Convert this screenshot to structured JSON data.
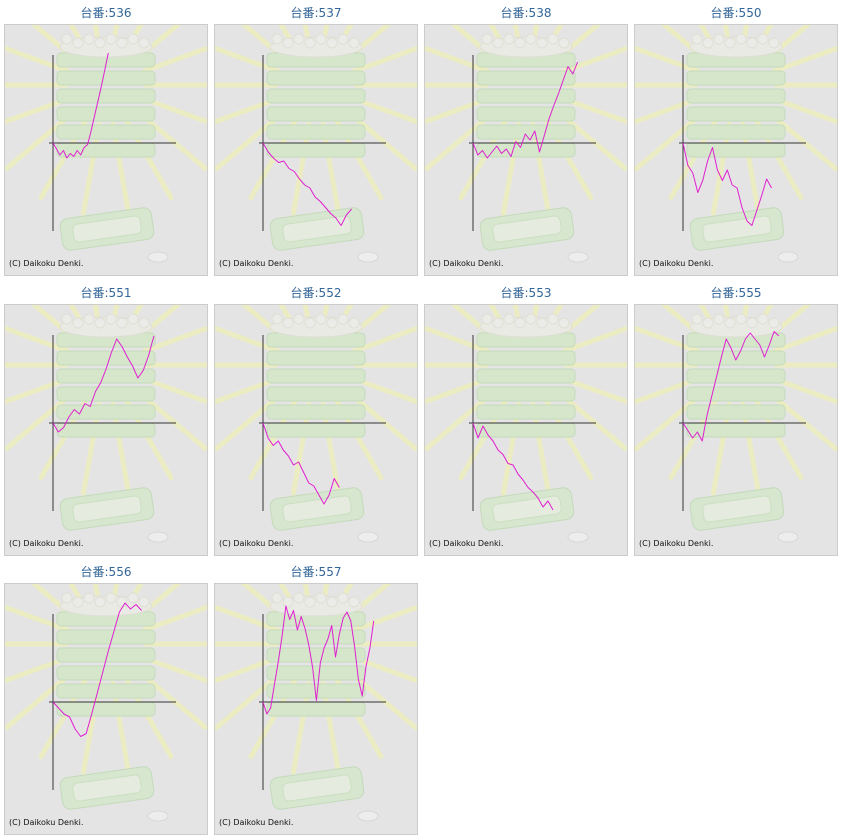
{
  "page": {
    "label_prefix": "台番:",
    "copyright": "(C) Daikoku Denki."
  },
  "colors": {
    "line": "#e01fd0",
    "axis": "#333333",
    "panel_bg": "#e4e4e4",
    "title": "#336699"
  },
  "chart_data": [
    {
      "type": "line",
      "title": "台番:536",
      "ylim": [
        -6,
        6
      ],
      "values": [
        0,
        -0.4,
        -0.8,
        -0.5,
        -1,
        -0.7,
        -0.9,
        -0.5,
        -0.8,
        -0.3,
        -0.1,
        0.8,
        1.8,
        2.8,
        3.8,
        4.9,
        6
      ]
    },
    {
      "type": "line",
      "title": "台番:537",
      "ylim": [
        -6,
        6
      ],
      "values": [
        0,
        -0.6,
        -1,
        -1.3,
        -1.2,
        -1.7,
        -1.9,
        -2.4,
        -2.8,
        -3,
        -3.6,
        -3.9,
        -4.3,
        -4.7,
        -5,
        -5.5,
        -4.8,
        -4.4
      ]
    },
    {
      "type": "line",
      "title": "台番:538",
      "ylim": [
        -6,
        6
      ],
      "values": [
        0,
        -0.8,
        -0.5,
        -1,
        -0.6,
        -0.2,
        -0.7,
        -0.4,
        -0.9,
        0.1,
        -0.3,
        0.6,
        0.2,
        0.8,
        -0.6,
        0.5,
        1.6,
        2.5,
        3.3,
        4.2,
        5.1,
        4.6,
        5.4
      ]
    },
    {
      "type": "line",
      "title": "台番:550",
      "ylim": [
        -6,
        6
      ],
      "values": [
        0,
        -1.5,
        -2,
        -3.3,
        -2.5,
        -1.2,
        -0.3,
        -1.8,
        -2.5,
        -1.8,
        -2.8,
        -3,
        -4.3,
        -5.2,
        -5.5,
        -4.5,
        -3.5,
        -2.4,
        -3
      ]
    },
    {
      "type": "line",
      "title": "台番:551",
      "ylim": [
        -6,
        6
      ],
      "values": [
        0,
        -0.6,
        -0.3,
        0.4,
        0.9,
        0.6,
        1.3,
        1.1,
        2.1,
        2.7,
        3.6,
        4.7,
        5.6,
        5.1,
        4.4,
        3.8,
        3,
        3.5,
        4.5,
        5.8
      ]
    },
    {
      "type": "line",
      "title": "台番:552",
      "ylim": [
        -6,
        6
      ],
      "values": [
        0,
        -1,
        -1.5,
        -1.2,
        -1.8,
        -2.2,
        -2.8,
        -2.6,
        -3.3,
        -4,
        -4.2,
        -4.8,
        -5.4,
        -4.8,
        -3.7,
        -4.3
      ]
    },
    {
      "type": "line",
      "title": "台番:553",
      "ylim": [
        -6,
        6
      ],
      "values": [
        0,
        -1,
        -0.2,
        -0.8,
        -1.2,
        -1.8,
        -2.1,
        -2.7,
        -2.8,
        -3.4,
        -3.8,
        -4.3,
        -4.6,
        -5,
        -5.6,
        -5.2,
        -5.8
      ]
    },
    {
      "type": "line",
      "title": "台番:555",
      "ylim": [
        -6,
        6
      ],
      "values": [
        0,
        -0.5,
        -1,
        -0.6,
        -1.2,
        0.5,
        1.8,
        3.1,
        4.4,
        5.6,
        5,
        4.2,
        4.8,
        5.6,
        6,
        5.6,
        5.2,
        4.4,
        5.2,
        6.1,
        5.8
      ]
    },
    {
      "type": "line",
      "title": "台番:556",
      "ylim": [
        -6,
        6
      ],
      "values": [
        0,
        -0.4,
        -0.8,
        -1,
        -1.8,
        -2.3,
        -2.1,
        -0.8,
        0.6,
        2,
        3.4,
        4.7,
        6,
        6.6,
        6.2,
        6.5,
        6.1
      ]
    },
    {
      "type": "line",
      "title": "台番:557",
      "ylim": [
        -6,
        6
      ],
      "values": [
        0,
        -0.8,
        -0.4,
        1.2,
        2.7,
        4.4,
        6.4,
        5.5,
        6.1,
        4.8,
        5.7,
        4.9,
        3.8,
        2.3,
        0.1,
        2.6,
        3.6,
        4.2,
        5.1,
        3,
        4.5,
        5.6,
        6,
        5.4,
        3.7,
        1.5,
        0.4,
        2.4,
        3.6,
        5.4
      ]
    }
  ]
}
